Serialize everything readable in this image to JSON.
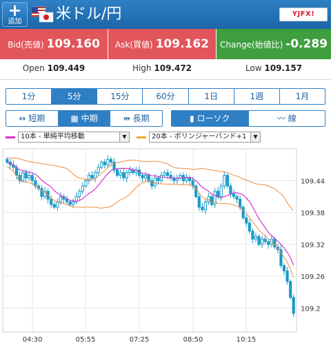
{
  "header": {
    "add_plus": "+",
    "add_label": "追加",
    "title": "米ドル/円",
    "logo_text": "YJFX!"
  },
  "quotes": {
    "bid_label": "Bid(売値)",
    "bid_value": "109.160",
    "ask_label": "Ask(買値)",
    "ask_value": "109.162",
    "change_label": "Change(始値比)",
    "change_value": "-0.289"
  },
  "stats": {
    "open_label": "Open",
    "open_value": "109.449",
    "high_label": "High",
    "high_value": "109.472",
    "low_label": "Low",
    "low_value": "109.157"
  },
  "timeframes": [
    {
      "label": "1分",
      "active": false
    },
    {
      "label": "5分",
      "active": true
    },
    {
      "label": "15分",
      "active": false
    },
    {
      "label": "60分",
      "active": false
    },
    {
      "label": "1日",
      "active": false
    },
    {
      "label": "1週",
      "active": false
    },
    {
      "label": "1月",
      "active": false
    }
  ],
  "terms": [
    {
      "label": "短期",
      "icon": "shrink-icon",
      "active": false
    },
    {
      "label": "中期",
      "icon": "mid-icon",
      "active": true
    },
    {
      "label": "長期",
      "icon": "expand-icon",
      "active": false
    }
  ],
  "chart_types": [
    {
      "label": "ローソク",
      "icon": "candlestick-icon",
      "active": true
    },
    {
      "label": "線",
      "icon": "line-chart-icon",
      "active": false
    }
  ],
  "indicators": [
    {
      "label": "10本 - 単純平均移動",
      "color": "#d633c9"
    },
    {
      "label": "20本 - ボリンジャーバンド+1",
      "color": "#f5a623"
    }
  ],
  "colors": {
    "header": "#1f6dae",
    "bid_ask_bg": "#e2555a",
    "change_bg": "#3f9f3f",
    "candle": "#1a9bc9",
    "sma": "#d633c9",
    "bollinger": "#f08a3c"
  },
  "chart_data": {
    "type": "candlestick",
    "title": "",
    "xlabel": "",
    "ylabel": "",
    "x_ticks": [
      "04:30",
      "05:55",
      "07:25",
      "08:50",
      "10:15"
    ],
    "y_ticks": [
      "109.2",
      "109.26",
      "109.32",
      "109.38",
      "109.44"
    ],
    "y_tick_values": [
      109.2,
      109.26,
      109.32,
      109.38,
      109.44
    ],
    "ylim": [
      109.155,
      109.5
    ],
    "grid": true,
    "close": [
      109.475,
      109.47,
      109.465,
      109.45,
      109.44,
      109.455,
      109.445,
      109.45,
      109.44,
      109.43,
      109.425,
      109.41,
      109.42,
      109.405,
      109.395,
      109.39,
      109.4,
      109.41,
      109.405,
      109.4,
      109.395,
      109.4,
      109.41,
      109.42,
      109.43,
      109.44,
      109.45,
      109.445,
      109.455,
      109.465,
      109.475,
      109.47,
      109.48,
      109.475,
      109.46,
      109.45,
      109.455,
      109.445,
      109.455,
      109.46,
      109.455,
      109.46,
      109.45,
      109.445,
      109.45,
      109.44,
      109.43,
      109.445,
      109.44,
      109.45,
      109.455,
      109.45,
      109.445,
      109.44,
      109.445,
      109.45,
      109.44,
      109.445,
      109.44,
      109.43,
      109.41,
      109.39,
      109.385,
      109.4,
      109.41,
      109.395,
      109.42,
      109.41,
      109.43,
      109.45,
      109.43,
      109.415,
      109.41,
      109.405,
      109.39,
      109.37,
      109.36,
      109.345,
      109.33,
      109.335,
      109.32,
      109.33,
      109.325,
      109.32,
      109.33,
      109.315,
      109.31,
      109.28,
      109.27,
      109.25,
      109.22,
      109.19
    ],
    "series": [
      {
        "name": "10本 - 単純平均移動",
        "type": "sma"
      },
      {
        "name": "20本 - ボリンジャーバンド+1",
        "type": "bollinger"
      }
    ]
  }
}
